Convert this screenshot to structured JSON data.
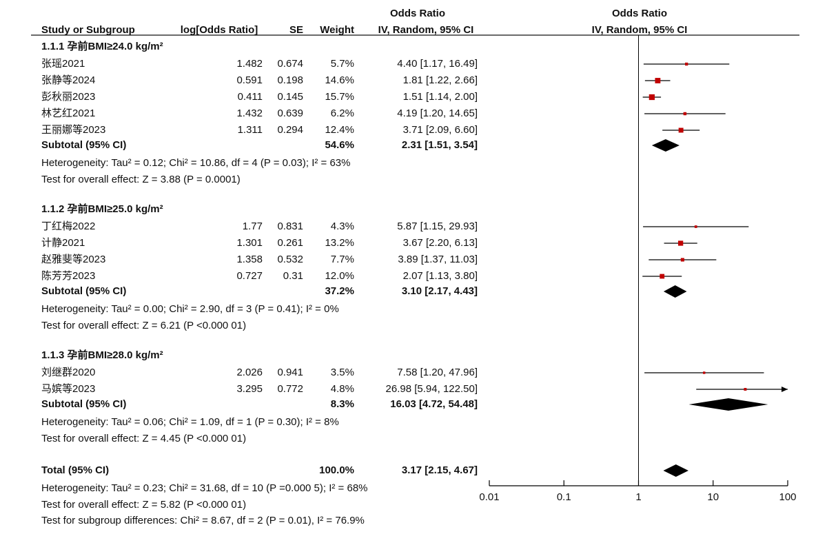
{
  "chart_data": {
    "type": "forest",
    "log_scale": true,
    "xlim": [
      0.01,
      100
    ],
    "xticks": [
      0.01,
      0.1,
      1,
      10,
      100
    ],
    "marker_color": "#c00000",
    "header": {
      "or_title": "Odds Ratio",
      "study": "Study or Subgroup",
      "log_or": "log[Odds Ratio]",
      "se": "SE",
      "weight": "Weight",
      "method": "IV, Random, 95% CI",
      "plot_title": "Odds Ratio",
      "plot_method": "IV, Random, 95% CI"
    },
    "groups": [
      {
        "title": "1.1.1 孕前BMI≥24.0 kg/m²",
        "studies": [
          {
            "name": "张瑶2021",
            "log_or": 1.482,
            "se": 0.674,
            "weight": 5.7,
            "weight_label": "5.7%",
            "or": 4.4,
            "lower": 1.17,
            "upper": 16.49,
            "ci_label": "4.40 [1.17, 16.49]"
          },
          {
            "name": "张静等2024",
            "log_or": 0.591,
            "se": 0.198,
            "weight": 14.6,
            "weight_label": "14.6%",
            "or": 1.81,
            "lower": 1.22,
            "upper": 2.66,
            "ci_label": "1.81 [1.22, 2.66]"
          },
          {
            "name": "彭秋丽2023",
            "log_or": 0.411,
            "se": 0.145,
            "weight": 15.7,
            "weight_label": "15.7%",
            "or": 1.51,
            "lower": 1.14,
            "upper": 2.0,
            "ci_label": "1.51 [1.14, 2.00]"
          },
          {
            "name": "林艺红2021",
            "log_or": 1.432,
            "se": 0.639,
            "weight": 6.2,
            "weight_label": "6.2%",
            "or": 4.19,
            "lower": 1.2,
            "upper": 14.65,
            "ci_label": "4.19 [1.20, 14.65]"
          },
          {
            "name": "王丽娜等2023",
            "log_or": 1.311,
            "se": 0.294,
            "weight": 12.4,
            "weight_label": "12.4%",
            "or": 3.71,
            "lower": 2.09,
            "upper": 6.6,
            "ci_label": "3.71 [2.09, 6.60]"
          }
        ],
        "subtotal": {
          "name": "Subtotal (95% CI)",
          "weight": 54.6,
          "weight_label": "54.6%",
          "or": 2.31,
          "lower": 1.51,
          "upper": 3.54,
          "ci_label": "2.31 [1.51, 3.54]"
        },
        "heterogeneity": "Heterogeneity: Tau² = 0.12; Chi² = 10.86, df = 4 (P = 0.03); I² = 63%",
        "overall": "Test for overall effect: Z = 3.88 (P = 0.0001)"
      },
      {
        "title": "1.1.2 孕前BMI≥25.0 kg/m²",
        "studies": [
          {
            "name": "丁红梅2022",
            "log_or": 1.77,
            "se": 0.831,
            "weight": 4.3,
            "weight_label": "4.3%",
            "or": 5.87,
            "lower": 1.15,
            "upper": 29.93,
            "ci_label": "5.87 [1.15, 29.93]"
          },
          {
            "name": "计静2021",
            "log_or": 1.301,
            "se": 0.261,
            "weight": 13.2,
            "weight_label": "13.2%",
            "or": 3.67,
            "lower": 2.2,
            "upper": 6.13,
            "ci_label": "3.67 [2.20, 6.13]"
          },
          {
            "name": "赵雅斐等2023",
            "log_or": 1.358,
            "se": 0.532,
            "weight": 7.7,
            "weight_label": "7.7%",
            "or": 3.89,
            "lower": 1.37,
            "upper": 11.03,
            "ci_label": "3.89 [1.37, 11.03]"
          },
          {
            "name": "陈芳芳2023",
            "log_or": 0.727,
            "se": 0.31,
            "weight": 12.0,
            "weight_label": "12.0%",
            "or": 2.07,
            "lower": 1.13,
            "upper": 3.8,
            "ci_label": "2.07 [1.13, 3.80]"
          }
        ],
        "subtotal": {
          "name": "Subtotal (95% CI)",
          "weight": 37.2,
          "weight_label": "37.2%",
          "or": 3.1,
          "lower": 2.17,
          "upper": 4.43,
          "ci_label": "3.10 [2.17, 4.43]"
        },
        "heterogeneity": "Heterogeneity: Tau² = 0.00; Chi² = 2.90, df = 3 (P = 0.41); I² = 0%",
        "overall": "Test for overall effect: Z = 6.21 (P <0.000 01)"
      },
      {
        "title": "1.1.3 孕前BMI≥28.0 kg/m²",
        "studies": [
          {
            "name": "刘继群2020",
            "log_or": 2.026,
            "se": 0.941,
            "weight": 3.5,
            "weight_label": "3.5%",
            "or": 7.58,
            "lower": 1.2,
            "upper": 47.96,
            "ci_label": "7.58 [1.20, 47.96]"
          },
          {
            "name": "马嫔等2023",
            "log_or": 3.295,
            "se": 0.772,
            "weight": 4.8,
            "weight_label": "4.8%",
            "or": 26.98,
            "lower": 5.94,
            "upper": 122.5,
            "ci_label": "26.98 [5.94, 122.50]"
          }
        ],
        "subtotal": {
          "name": "Subtotal (95% CI)",
          "weight": 8.3,
          "weight_label": "8.3%",
          "or": 16.03,
          "lower": 4.72,
          "upper": 54.48,
          "ci_label": "16.03 [4.72, 54.48]"
        },
        "heterogeneity": "Heterogeneity: Tau² = 0.06; Chi² = 1.09, df = 1 (P = 0.30); I² = 8%",
        "overall": "Test for overall effect: Z = 4.45 (P <0.000 01)"
      }
    ],
    "total": {
      "name": "Total (95% CI)",
      "weight": 100.0,
      "weight_label": "100.0%",
      "or": 3.17,
      "lower": 2.15,
      "upper": 4.67,
      "ci_label": "3.17 [2.15, 4.67]"
    },
    "total_heterogeneity": "Heterogeneity: Tau² = 0.23; Chi² = 31.68, df = 10 (P =0.000 5); I² = 68%",
    "total_overall": "Test for overall effect: Z = 5.82 (P <0.000 01)",
    "subgroup_differences": "Test for subgroup differences: Chi² = 8.67, df = 2 (P = 0.01), I² = 76.9%"
  }
}
